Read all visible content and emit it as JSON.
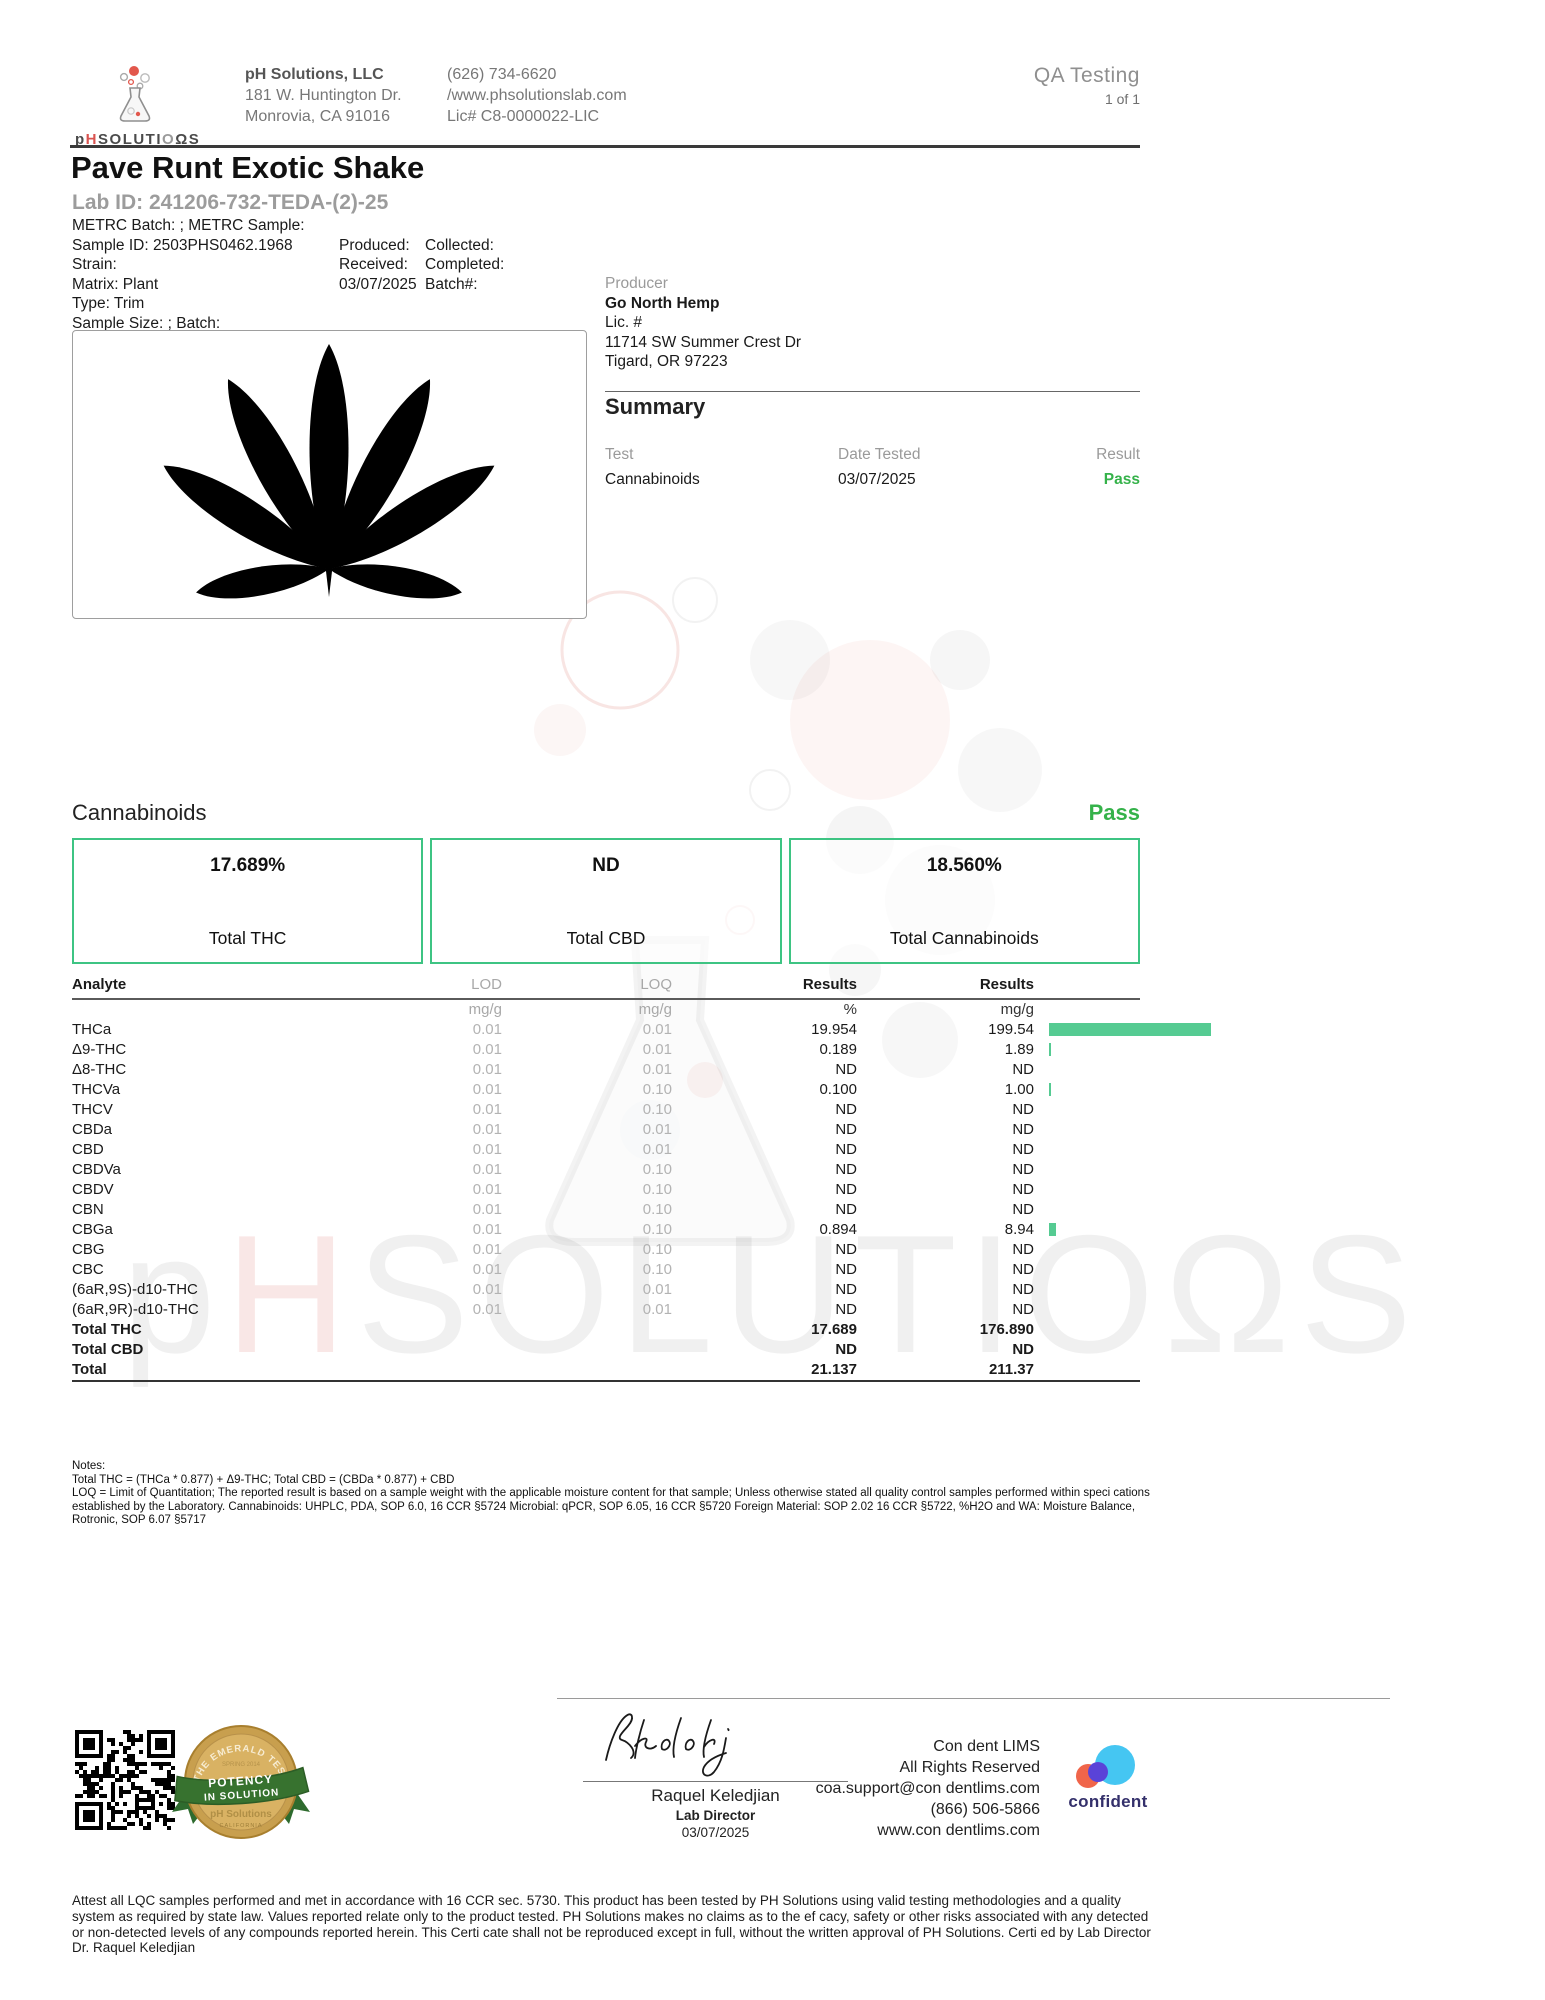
{
  "page": {
    "qa_label": "QA Testing",
    "page_count": "1 of 1"
  },
  "header": {
    "logo_p": "p",
    "logo_h": "H",
    "logo_s1": "SOLUTI",
    "logo_o": "O",
    "logo_s2": "ΩS",
    "company_name": "pH Solutions, LLC",
    "address_line1": "181 W. Huntington Dr.",
    "address_line2": "Monrovia, CA 91016",
    "phone": "(626) 734-6620",
    "website": "/www.phsolutionslab.com",
    "license": "Lic# C8-0000022-LIC"
  },
  "sample": {
    "title": "Pave Runt Exotic Shake",
    "lab_id": "Lab ID: 241206-732-TEDA-(2)-25",
    "metrc": "METRC Batch: ; METRC Sample:",
    "sample_id": "Sample ID: 2503PHS0462.1968",
    "strain": "Strain:",
    "matrix": "Matrix: Plant",
    "type": "Type: Trim",
    "sample_size": "Sample Size: ; Batch:",
    "produced_label": "Produced:",
    "collected_label": "Collected:",
    "received_label": "Received:",
    "completed_label": "Completed:",
    "received_date": "03/07/2025",
    "batch_label": "Batch#:"
  },
  "producer": {
    "label": "Producer",
    "name": "Go North Hemp",
    "lic": "Lic. #",
    "address1": "11714 SW Summer Crest Dr",
    "address2": "Tigard, OR 97223"
  },
  "summary": {
    "heading": "Summary",
    "col_test": "Test",
    "col_date": "Date Tested",
    "col_result": "Result",
    "rows": [
      {
        "test": "Cannabinoids",
        "date": "03/07/2025",
        "result": "Pass"
      }
    ]
  },
  "cannabinoids": {
    "heading": "Cannabinoids",
    "status": "Pass",
    "boxes": [
      {
        "value": "17.689%",
        "label": "Total THC"
      },
      {
        "value": "ND",
        "label": "Total CBD"
      },
      {
        "value": "18.560%",
        "label": "Total Cannabinoids"
      }
    ]
  },
  "analyte_table": {
    "col_analyte": "Analyte",
    "col_lod": "LOD",
    "col_loq": "LOQ",
    "col_results_pct": "Results",
    "col_results_mg": "Results",
    "unit_lod": "mg/g",
    "unit_loq": "mg/g",
    "unit_pct": "%",
    "unit_mg": "mg/g",
    "bar_max": 199.54,
    "rows": [
      {
        "analyte": "THCa",
        "lod": "0.01",
        "loq": "0.01",
        "result_pct": "19.954",
        "result_mg": "199.54",
        "bar": 199.54,
        "bold": false
      },
      {
        "analyte": "Δ9-THC",
        "lod": "0.01",
        "loq": "0.01",
        "result_pct": "0.189",
        "result_mg": "1.89",
        "bar": 1.89,
        "bold": false
      },
      {
        "analyte": "Δ8-THC",
        "lod": "0.01",
        "loq": "0.01",
        "result_pct": "ND",
        "result_mg": "ND",
        "bar": 0,
        "bold": false
      },
      {
        "analyte": "THCVa",
        "lod": "0.01",
        "loq": "0.10",
        "result_pct": "0.100",
        "result_mg": "1.00",
        "bar": 1.0,
        "bold": false
      },
      {
        "analyte": "THCV",
        "lod": "0.01",
        "loq": "0.10",
        "result_pct": "ND",
        "result_mg": "ND",
        "bar": 0,
        "bold": false
      },
      {
        "analyte": "CBDa",
        "lod": "0.01",
        "loq": "0.01",
        "result_pct": "ND",
        "result_mg": "ND",
        "bar": 0,
        "bold": false
      },
      {
        "analyte": "CBD",
        "lod": "0.01",
        "loq": "0.01",
        "result_pct": "ND",
        "result_mg": "ND",
        "bar": 0,
        "bold": false
      },
      {
        "analyte": "CBDVa",
        "lod": "0.01",
        "loq": "0.10",
        "result_pct": "ND",
        "result_mg": "ND",
        "bar": 0,
        "bold": false
      },
      {
        "analyte": "CBDV",
        "lod": "0.01",
        "loq": "0.10",
        "result_pct": "ND",
        "result_mg": "ND",
        "bar": 0,
        "bold": false
      },
      {
        "analyte": "CBN",
        "lod": "0.01",
        "loq": "0.10",
        "result_pct": "ND",
        "result_mg": "ND",
        "bar": 0,
        "bold": false
      },
      {
        "analyte": "CBGa",
        "lod": "0.01",
        "loq": "0.10",
        "result_pct": "0.894",
        "result_mg": "8.94",
        "bar": 8.94,
        "bold": false
      },
      {
        "analyte": "CBG",
        "lod": "0.01",
        "loq": "0.10",
        "result_pct": "ND",
        "result_mg": "ND",
        "bar": 0,
        "bold": false
      },
      {
        "analyte": "CBC",
        "lod": "0.01",
        "loq": "0.10",
        "result_pct": "ND",
        "result_mg": "ND",
        "bar": 0,
        "bold": false
      },
      {
        "analyte": "(6aR,9S)-d10-THC",
        "lod": "0.01",
        "loq": "0.01",
        "result_pct": "ND",
        "result_mg": "ND",
        "bar": 0,
        "bold": false
      },
      {
        "analyte": "(6aR,9R)-d10-THC",
        "lod": "0.01",
        "loq": "0.01",
        "result_pct": "ND",
        "result_mg": "ND",
        "bar": 0,
        "bold": false
      },
      {
        "analyte": "Total THC",
        "lod": "",
        "loq": "",
        "result_pct": "17.689",
        "result_mg": "176.890",
        "bar": 0,
        "bold": true
      },
      {
        "analyte": "Total CBD",
        "lod": "",
        "loq": "",
        "result_pct": "ND",
        "result_mg": "ND",
        "bar": 0,
        "bold": true
      },
      {
        "analyte": "Total",
        "lod": "",
        "loq": "",
        "result_pct": "21.137",
        "result_mg": "211.37",
        "bar": 0,
        "bold": true
      }
    ]
  },
  "notes": {
    "label": "Notes:",
    "lines": [
      "Total THC = (THCa * 0.877) + Δ9-THC; Total CBD = (CBDa * 0.877) + CBD",
      "LOQ = Limit of Quantitation; The reported result is based on a sample weight with the applicable moisture content for that sample; Unless otherwise stated all quality control samples performed within speci cations established by the Laboratory. Cannabinoids: UHPLC, PDA, SOP 6.0, 16 CCR §5724 Microbial: qPCR, SOP 6.05, 16 CCR §5720 Foreign Material: SOP 2.02 16 CCR §5722, %H2O and WA: Moisture Balance, Rotronic, SOP 6.07 §5717"
    ]
  },
  "footer": {
    "signature_name": "Raquel Keledjian",
    "signature_role": "Lab Director",
    "signature_date": "03/07/2025",
    "lims_lines": [
      "Con dent LIMS",
      "All Rights Reserved",
      "coa.support@con dentlims.com",
      "(866) 506-5866",
      "www.con dentlims.com"
    ],
    "confident_label": "confident",
    "badge": {
      "arc_top": "THE EMERALD TEST",
      "sub": "SPRING 2014",
      "banner1": "POTENCY",
      "banner2": "IN SOLUTION",
      "org": "pH Solutions",
      "bottom": "CALIFORNIA"
    }
  },
  "watermark": {
    "p": "p",
    "h": "H",
    "rest": "SOLUTIOΩS"
  },
  "attestation": "Attest all LQC samples performed and met in accordance with 16 CCR sec. 5730. This product has been tested by PH Solutions using valid testing methodologies and a quality system as required by state law. Values reported relate only to the product tested. PH Solutions makes no claims as to the ef cacy, safety or other risks associated with any detected or non-detected levels of any compounds reported herein. This Certi cate shall not be reproduced except in full, without the written approval of PH Solutions. Certi ed by Lab Director Dr. Raquel Keledjian",
  "colors": {
    "accent_green": "#3ec483",
    "bar_green": "#55cb92",
    "pass_green": "#35b24a",
    "logo_red": "#d9534f"
  }
}
